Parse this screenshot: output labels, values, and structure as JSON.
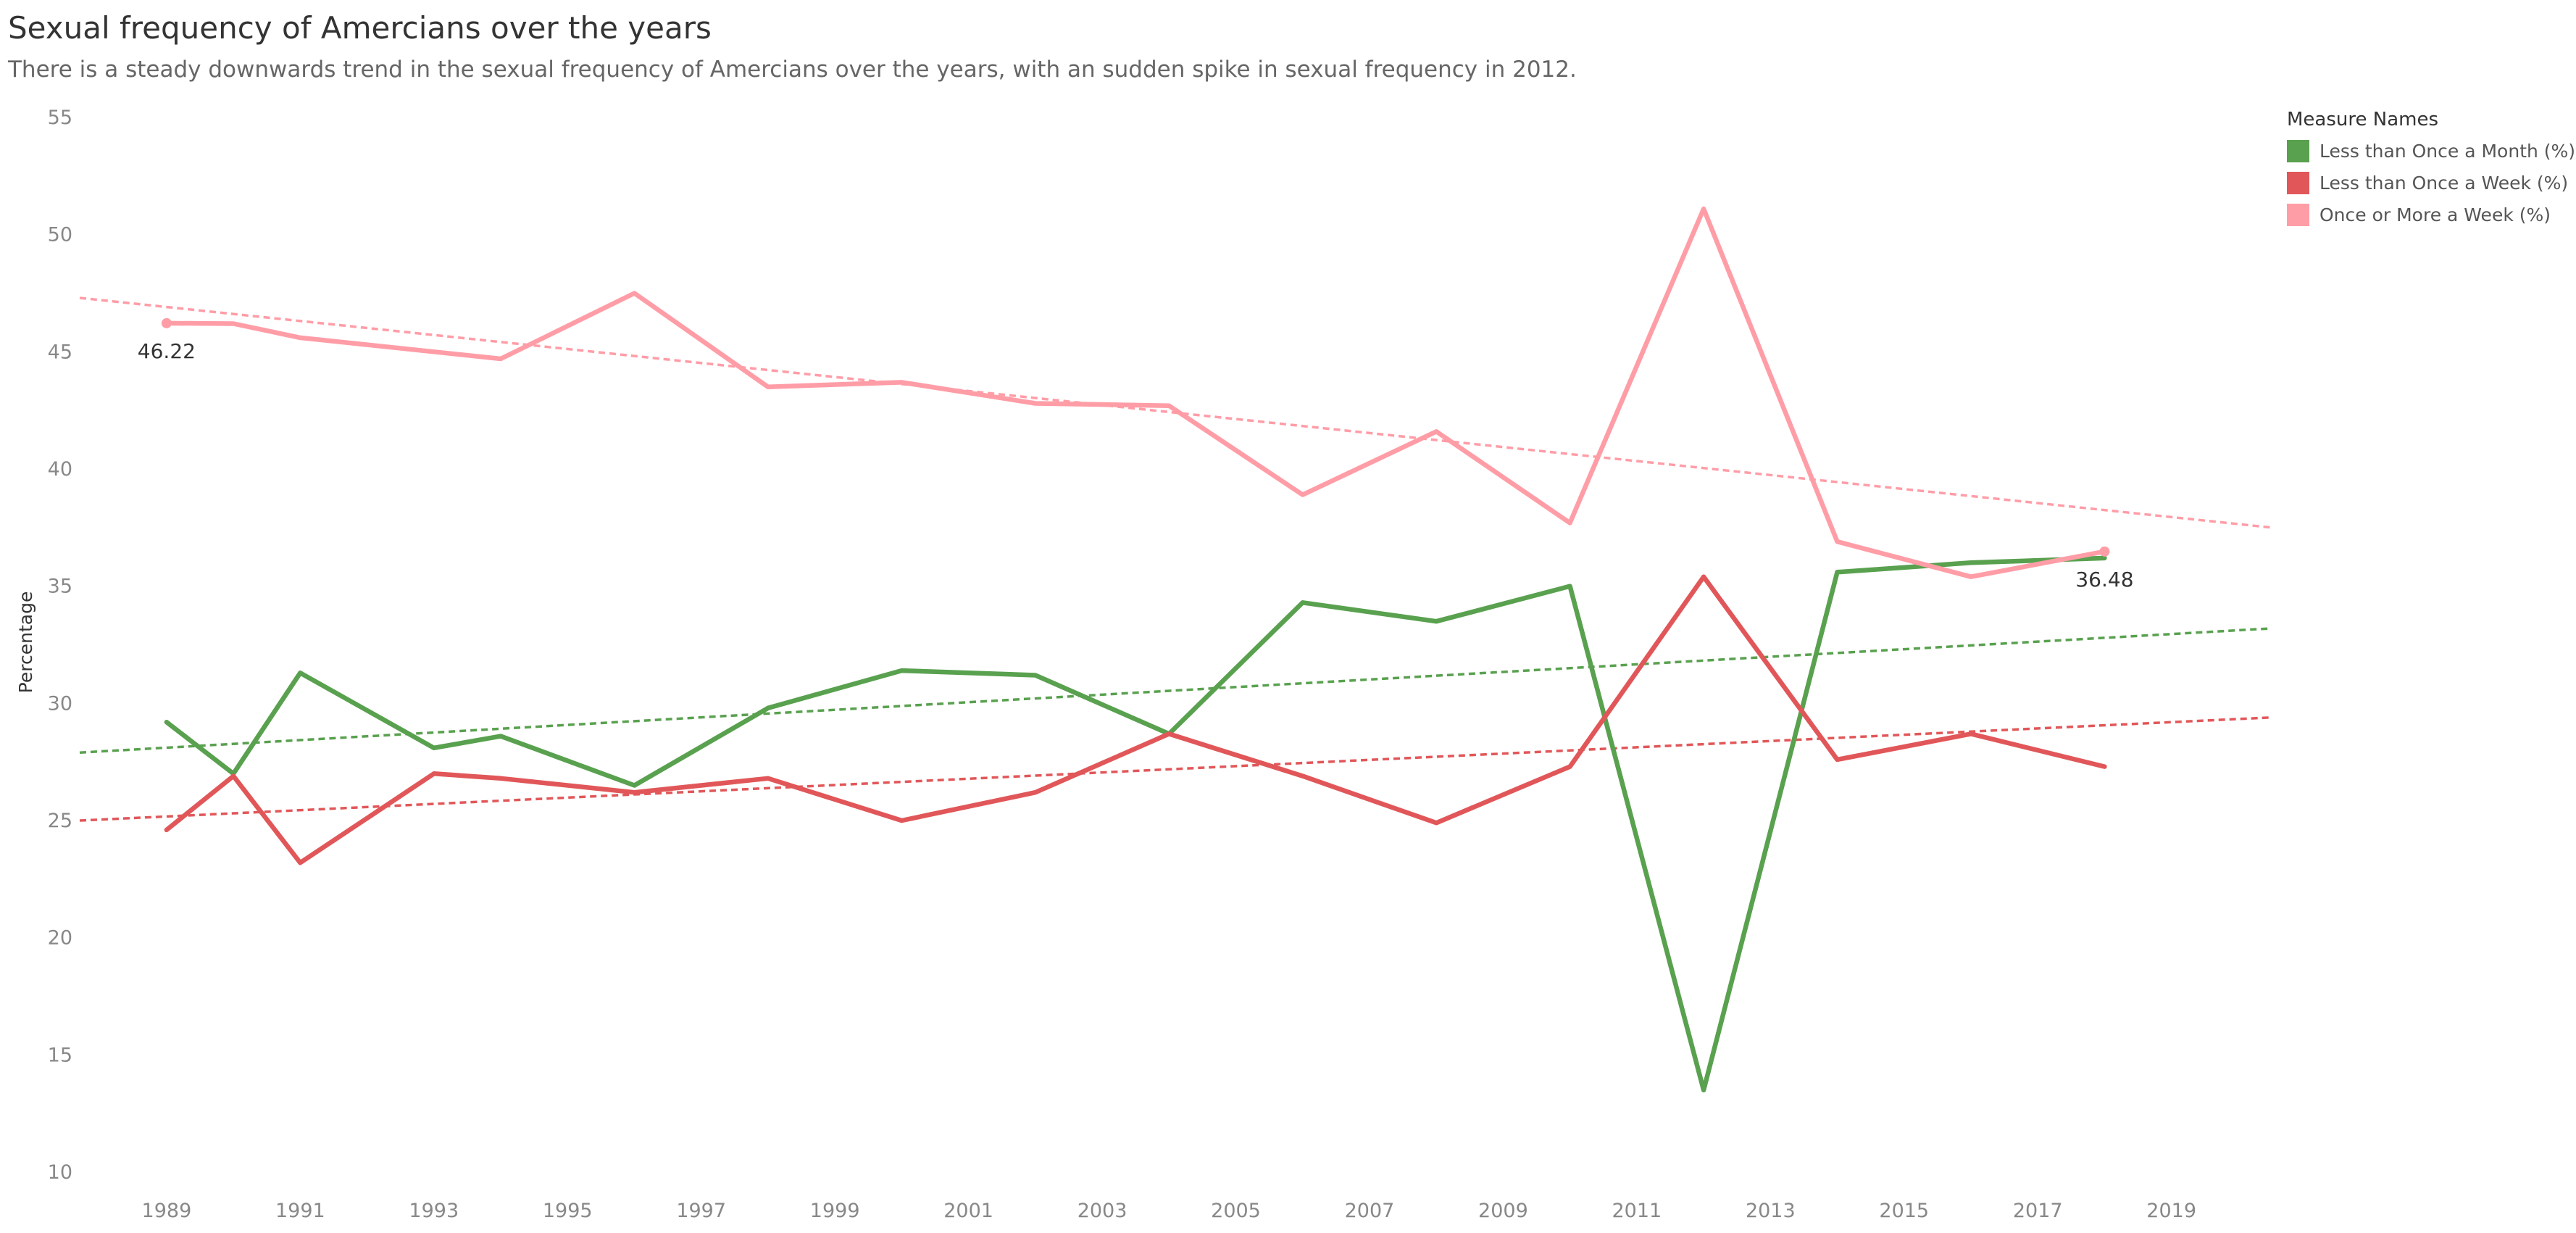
{
  "chart_data": {
    "type": "line",
    "title": "Sexual frequency of Amercians over the years",
    "subtitle": "There is a steady downwards trend in the sexual frequency of Amercians over the years, with an sudden spike in sexual frequency in 2012.",
    "xlabel": "",
    "ylabel": "Percentage",
    "xlim": [
      1987.7,
      2020.5
    ],
    "ylim": [
      10,
      55
    ],
    "x_ticks": [
      "1989",
      "1991",
      "1993",
      "1995",
      "1997",
      "1999",
      "2001",
      "2003",
      "2005",
      "2007",
      "2009",
      "2011",
      "2013",
      "2015",
      "2017",
      "2019"
    ],
    "y_ticks": [
      "10",
      "15",
      "20",
      "25",
      "30",
      "35",
      "40",
      "45",
      "50",
      "55"
    ],
    "grid": false,
    "legend_title": "Measure Names",
    "legend_position": "top-right",
    "series": [
      {
        "name": "Less than Once a Month (%)",
        "color": "#59a14f",
        "x": [
          1989,
          1990,
          1991,
          1993,
          1994,
          1996,
          1998,
          2000,
          2002,
          2004,
          2006,
          2008,
          2010,
          2012,
          2014,
          2016,
          2018
        ],
        "values": [
          29.2,
          27.0,
          31.3,
          28.1,
          28.6,
          26.5,
          29.8,
          31.4,
          31.2,
          28.7,
          34.3,
          33.5,
          35.0,
          13.5,
          35.6,
          36.0,
          36.2
        ],
        "trend": [
          27.9,
          33.2
        ]
      },
      {
        "name": "Less than Once a Week (%)",
        "color": "#e15759",
        "x": [
          1989,
          1990,
          1991,
          1993,
          1994,
          1996,
          1998,
          2000,
          2002,
          2004,
          2006,
          2008,
          2010,
          2012,
          2014,
          2016,
          2018
        ],
        "values": [
          24.6,
          26.9,
          23.2,
          27.0,
          26.8,
          26.2,
          26.8,
          25.0,
          26.2,
          28.7,
          26.9,
          24.9,
          27.3,
          35.4,
          27.6,
          28.7,
          27.3
        ],
        "trend": [
          25.0,
          29.4
        ]
      },
      {
        "name": "Once or More a Week (%)",
        "color": "#ff9da7",
        "x": [
          1989,
          1990,
          1991,
          1993,
          1994,
          1996,
          1998,
          2000,
          2002,
          2004,
          2006,
          2008,
          2010,
          2012,
          2014,
          2016,
          2018
        ],
        "values": [
          46.22,
          46.2,
          45.6,
          45.0,
          44.7,
          47.5,
          43.5,
          43.7,
          42.8,
          42.7,
          38.9,
          41.6,
          37.7,
          51.1,
          36.9,
          35.4,
          36.48
        ],
        "trend": [
          47.3,
          37.5
        ]
      }
    ],
    "annotations": [
      {
        "text": "46.22",
        "series": 2,
        "x": 1989,
        "y": 46.22
      },
      {
        "text": "36.48",
        "series": 2,
        "x": 2018,
        "y": 36.48
      }
    ]
  }
}
